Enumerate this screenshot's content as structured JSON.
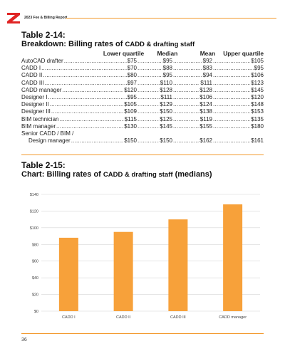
{
  "header": {
    "report_title": "2023 Fee & Billing Report"
  },
  "table1": {
    "label": "Table 2-14:",
    "subtitle_main": "Breakdown: Billing rates of ",
    "subtitle_small": "CADD & drafting staff",
    "columns": [
      "Lower quartile",
      "Median",
      "Mean",
      "Upper quartile"
    ],
    "rows": [
      {
        "name": "AutoCAD drafter",
        "values": [
          "$75",
          "$95",
          "$92",
          "$105"
        ]
      },
      {
        "name": "CADD I",
        "values": [
          "$70",
          "$88",
          "$83",
          "$95"
        ]
      },
      {
        "name": "CADD II",
        "values": [
          "$80",
          "$95",
          "$94",
          "$106"
        ]
      },
      {
        "name": "CADD III",
        "values": [
          "$97",
          "$110",
          "$111",
          "$123"
        ]
      },
      {
        "name": "CADD manager",
        "values": [
          "$120",
          "$128",
          "$128",
          "$145"
        ]
      },
      {
        "name": "Designer I",
        "values": [
          "$95",
          "$111",
          "$106",
          "$120"
        ]
      },
      {
        "name": "Designer II",
        "values": [
          "$105",
          "$129",
          "$124",
          "$148"
        ]
      },
      {
        "name": "Designer III",
        "values": [
          "$109",
          "$150",
          "$138",
          "$153"
        ]
      },
      {
        "name": "BIM technician",
        "values": [
          "$115",
          "$125",
          "$119",
          "$135"
        ]
      },
      {
        "name": "BIM manager",
        "values": [
          "$130",
          "$145",
          "$155",
          "$180"
        ]
      }
    ],
    "last_row": {
      "name_line1": "Senior CADD / BIM /",
      "name_line2": "Design manager",
      "values": [
        "$150",
        "$150",
        "$162",
        "$161"
      ]
    }
  },
  "table2": {
    "label": "Table 2-15:",
    "subtitle_main": "Chart: Billing rates of ",
    "subtitle_small": "CADD & drafting staff",
    "subtitle_end": " (medians)"
  },
  "chart_data": {
    "type": "bar",
    "categories": [
      "CADD I",
      "CADD II",
      "CADD III",
      "CADD manager"
    ],
    "values": [
      88,
      95,
      110,
      128
    ],
    "ylim": [
      0,
      140
    ],
    "yticks": [
      0,
      20,
      40,
      60,
      80,
      100,
      120,
      140
    ],
    "ytick_labels": [
      "$0",
      "$20",
      "$40",
      "$60",
      "$80",
      "$100",
      "$120",
      "$140"
    ],
    "grid": true,
    "bar_color": "#f7a13a",
    "grid_color": "#d6d6d6"
  },
  "footer": {
    "page_number": "36"
  },
  "colors": {
    "accent": "#f39a2e",
    "logo_red": "#e02424"
  }
}
